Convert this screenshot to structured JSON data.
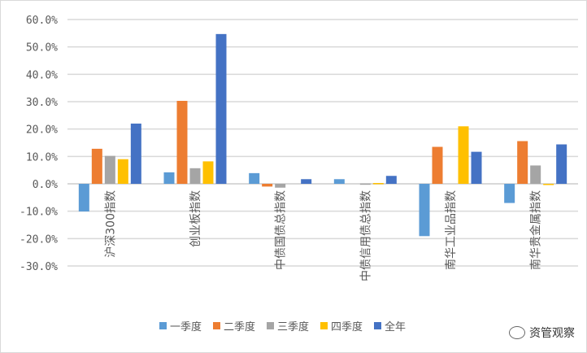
{
  "chart_data": {
    "type": "bar",
    "categories": [
      "沪深300指数",
      "创业板指数",
      "中债国债总指数",
      "中债信用债总指数",
      "南华工业品指数",
      "南华贵金属指数"
    ],
    "series": [
      {
        "name": "一季度",
        "color": "#5B9BD5",
        "values": [
          -10.1,
          4.2,
          3.9,
          1.7,
          -19.1,
          -7.0
        ]
      },
      {
        "name": "二季度",
        "color": "#ED7D31",
        "values": [
          12.8,
          30.3,
          -1.0,
          0.0,
          13.5,
          15.6
        ]
      },
      {
        "name": "三季度",
        "color": "#A5A5A5",
        "values": [
          10.2,
          5.7,
          -1.4,
          0.1,
          0.0,
          6.7
        ]
      },
      {
        "name": "四季度",
        "color": "#FFC000",
        "values": [
          9.0,
          8.2,
          0.0,
          0.3,
          21.0,
          -0.4
        ]
      },
      {
        "name": "全年",
        "color": "#4472C4",
        "values": [
          22.0,
          54.7,
          1.7,
          2.9,
          11.7,
          14.4
        ]
      }
    ],
    "yticks": [
      "60.0%",
      "50.0%",
      "40.0%",
      "30.0%",
      "20.0%",
      "10.0%",
      "0.0%",
      "-10.0%",
      "-20.0%",
      "-30.0%"
    ],
    "ylim": [
      -30,
      60
    ],
    "grid": true,
    "legend": "bottom",
    "xlabel": "",
    "ylabel": ""
  },
  "watermark": "资管观察"
}
